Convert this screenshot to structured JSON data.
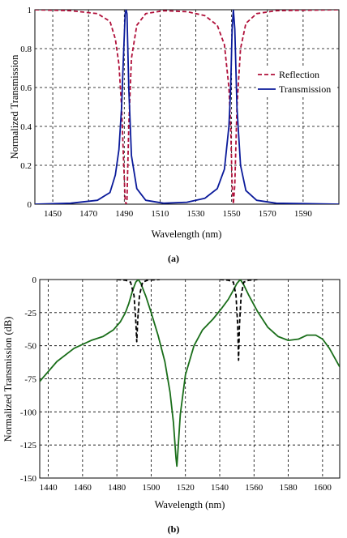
{
  "chart_data": [
    {
      "type": "line",
      "panel_label": "(a)",
      "xlabel": "Wavelength (nm)",
      "ylabel": "Normalized Transmission",
      "xlim": [
        1440,
        1610
      ],
      "ylim": [
        0,
        1
      ],
      "x_ticks": [
        1450,
        1470,
        1490,
        1510,
        1530,
        1550,
        1570,
        1590
      ],
      "y_ticks": [
        0,
        0.2,
        0.4,
        0.6,
        0.8,
        1
      ],
      "grid": true,
      "legend_position": "right",
      "series": [
        {
          "name": "Reflection",
          "color": "#b0103a",
          "dash": "dashed",
          "points": [
            [
              1440,
              1.0
            ],
            [
              1460,
              0.995
            ],
            [
              1475,
              0.98
            ],
            [
              1482,
              0.94
            ],
            [
              1485,
              0.85
            ],
            [
              1487,
              0.72
            ],
            [
              1488.5,
              0.5
            ],
            [
              1489.5,
              0.25
            ],
            [
              1490.5,
              0.02
            ],
            [
              1491,
              0.0
            ],
            [
              1491.5,
              0.02
            ],
            [
              1492.5,
              0.4
            ],
            [
              1494,
              0.75
            ],
            [
              1497,
              0.92
            ],
            [
              1502,
              0.98
            ],
            [
              1512,
              0.995
            ],
            [
              1525,
              0.99
            ],
            [
              1535,
              0.97
            ],
            [
              1542,
              0.92
            ],
            [
              1546,
              0.82
            ],
            [
              1548.5,
              0.6
            ],
            [
              1549.5,
              0.4
            ],
            [
              1550.3,
              0.1
            ],
            [
              1551,
              0.0
            ],
            [
              1551.8,
              0.1
            ],
            [
              1553,
              0.5
            ],
            [
              1555,
              0.8
            ],
            [
              1558,
              0.93
            ],
            [
              1564,
              0.98
            ],
            [
              1575,
              0.995
            ],
            [
              1610,
              1.0
            ]
          ]
        },
        {
          "name": "Transmission",
          "color": "#0a1a9a",
          "dash": "solid",
          "points": [
            [
              1440,
              0.0
            ],
            [
              1460,
              0.005
            ],
            [
              1475,
              0.02
            ],
            [
              1482,
              0.06
            ],
            [
              1485,
              0.15
            ],
            [
              1487,
              0.28
            ],
            [
              1488.5,
              0.5
            ],
            [
              1489.5,
              0.75
            ],
            [
              1490.5,
              0.98
            ],
            [
              1491,
              1.0
            ],
            [
              1491.5,
              0.98
            ],
            [
              1492.5,
              0.6
            ],
            [
              1494,
              0.25
            ],
            [
              1497,
              0.08
            ],
            [
              1502,
              0.02
            ],
            [
              1512,
              0.005
            ],
            [
              1525,
              0.01
            ],
            [
              1535,
              0.03
            ],
            [
              1542,
              0.08
            ],
            [
              1546,
              0.18
            ],
            [
              1548.5,
              0.4
            ],
            [
              1549.5,
              0.6
            ],
            [
              1550.3,
              0.9
            ],
            [
              1551,
              1.0
            ],
            [
              1551.8,
              0.9
            ],
            [
              1553,
              0.5
            ],
            [
              1555,
              0.2
            ],
            [
              1558,
              0.07
            ],
            [
              1564,
              0.02
            ],
            [
              1575,
              0.005
            ],
            [
              1610,
              0.0
            ]
          ]
        }
      ]
    },
    {
      "type": "line",
      "panel_label": "(b)",
      "xlabel": "Wavelength (nm)",
      "ylabel": "Normalized Transmission (dB)",
      "xlim": [
        1435,
        1610
      ],
      "ylim": [
        -150,
        0
      ],
      "x_ticks": [
        1440,
        1460,
        1480,
        1500,
        1520,
        1540,
        1560,
        1580,
        1600
      ],
      "y_ticks": [
        0,
        -25,
        -50,
        -75,
        -100,
        -125,
        -150
      ],
      "grid": true,
      "series": [
        {
          "color": "#1a6e1a",
          "dash": "solid",
          "points": [
            [
              1435,
              -77
            ],
            [
              1445,
              -62
            ],
            [
              1455,
              -52
            ],
            [
              1465,
              -46
            ],
            [
              1472,
              -43
            ],
            [
              1478,
              -38
            ],
            [
              1482,
              -32
            ],
            [
              1485,
              -25
            ],
            [
              1487,
              -18
            ],
            [
              1489,
              -9
            ],
            [
              1491,
              -2
            ],
            [
              1492.5,
              0
            ],
            [
              1494,
              -3
            ],
            [
              1497,
              -13
            ],
            [
              1500,
              -25
            ],
            [
              1504,
              -42
            ],
            [
              1508,
              -62
            ],
            [
              1511,
              -85
            ],
            [
              1513,
              -108
            ],
            [
              1514.5,
              -135
            ],
            [
              1515,
              -141
            ],
            [
              1515.5,
              -132
            ],
            [
              1517,
              -102
            ],
            [
              1520,
              -72
            ],
            [
              1525,
              -50
            ],
            [
              1530,
              -38
            ],
            [
              1536,
              -30
            ],
            [
              1541,
              -22
            ],
            [
              1545,
              -15
            ],
            [
              1548,
              -8
            ],
            [
              1550,
              -3
            ],
            [
              1552,
              0
            ],
            [
              1554,
              -4
            ],
            [
              1557,
              -12
            ],
            [
              1562,
              -24
            ],
            [
              1568,
              -36
            ],
            [
              1574,
              -43
            ],
            [
              1580,
              -46
            ],
            [
              1586,
              -45
            ],
            [
              1591,
              -42
            ],
            [
              1596,
              -42
            ],
            [
              1600,
              -45
            ],
            [
              1604,
              -52
            ],
            [
              1610,
              -66
            ]
          ]
        },
        {
          "color": "#000000",
          "dash": "dashed",
          "points": [
            [
              1480,
              0
            ],
            [
              1485,
              -0.5
            ],
            [
              1488,
              -2
            ],
            [
              1490,
              -12
            ],
            [
              1491,
              -30
            ],
            [
              1491.6,
              -47
            ],
            [
              1492.2,
              -30
            ],
            [
              1493.2,
              -12
            ],
            [
              1495,
              -2
            ],
            [
              1498,
              -0.5
            ],
            [
              1505,
              0
            ]
          ]
        },
        {
          "color": "#000000",
          "dash": "dashed",
          "points": [
            [
              1540,
              0
            ],
            [
              1545,
              -0.5
            ],
            [
              1548,
              -2
            ],
            [
              1549.5,
              -12
            ],
            [
              1550.5,
              -35
            ],
            [
              1551,
              -61
            ],
            [
              1551.5,
              -35
            ],
            [
              1552.5,
              -12
            ],
            [
              1554,
              -2
            ],
            [
              1557,
              -0.5
            ],
            [
              1562,
              0
            ]
          ]
        }
      ]
    }
  ]
}
